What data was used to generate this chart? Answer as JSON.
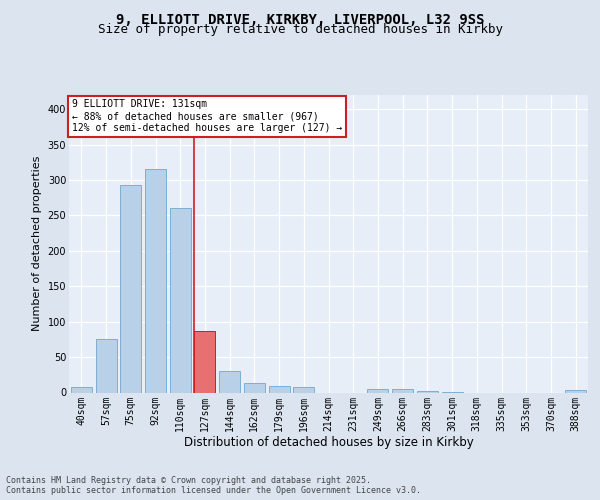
{
  "title1": "9, ELLIOTT DRIVE, KIRKBY, LIVERPOOL, L32 9SS",
  "title2": "Size of property relative to detached houses in Kirkby",
  "xlabel": "Distribution of detached houses by size in Kirkby",
  "ylabel": "Number of detached properties",
  "categories": [
    "40sqm",
    "57sqm",
    "75sqm",
    "92sqm",
    "110sqm",
    "127sqm",
    "144sqm",
    "162sqm",
    "179sqm",
    "196sqm",
    "214sqm",
    "231sqm",
    "249sqm",
    "266sqm",
    "283sqm",
    "301sqm",
    "318sqm",
    "335sqm",
    "353sqm",
    "370sqm",
    "388sqm"
  ],
  "values": [
    8,
    75,
    293,
    315,
    260,
    87,
    30,
    14,
    9,
    8,
    0,
    0,
    5,
    5,
    2,
    1,
    0,
    0,
    0,
    0,
    3
  ],
  "bar_color": "#b8d0e8",
  "bar_edge_color": "#7aafd4",
  "highlight_bar_index": 5,
  "highlight_bar_color": "#e87070",
  "highlight_bar_edge_color": "#cc2020",
  "vline_color": "#cc2020",
  "annotation_text": "9 ELLIOTT DRIVE: 131sqm\n← 88% of detached houses are smaller (967)\n12% of semi-detached houses are larger (127) →",
  "annotation_box_facecolor": "#ffffff",
  "annotation_box_edgecolor": "#cc2020",
  "footer": "Contains HM Land Registry data © Crown copyright and database right 2025.\nContains public sector information licensed under the Open Government Licence v3.0.",
  "ylim": [
    0,
    420
  ],
  "yticks": [
    0,
    50,
    100,
    150,
    200,
    250,
    300,
    350,
    400
  ],
  "bg_color": "#dce4f0",
  "plot_bg_color": "#e8eef8",
  "grid_color": "#ffffff",
  "title1_fontsize": 10,
  "title2_fontsize": 9,
  "tick_fontsize": 7,
  "ylabel_fontsize": 8,
  "xlabel_fontsize": 8.5,
  "annotation_fontsize": 7,
  "footer_fontsize": 6
}
